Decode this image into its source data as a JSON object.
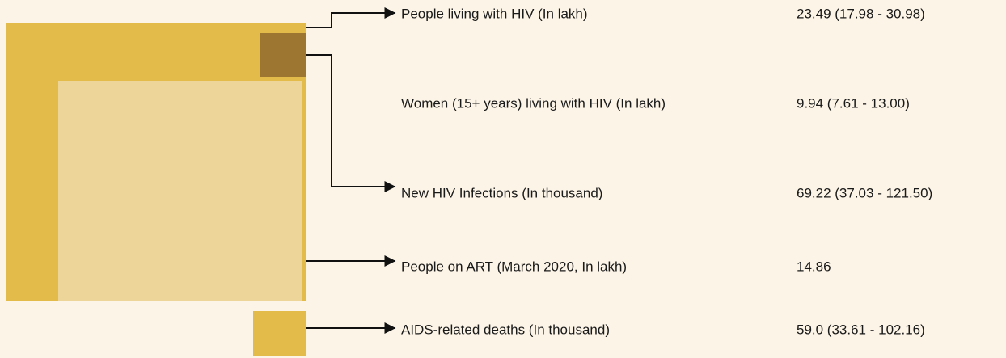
{
  "items": [
    {
      "label": "People living with HIV (In lakh)",
      "value": "23.49 (17.98 - 30.98)"
    },
    {
      "label": "Women (15+ years) living with HIV (In lakh)",
      "value": "9.94 (7.61 - 13.00)"
    },
    {
      "label": "New HIV Infections (In thousand)",
      "value": "69.22 (37.03 - 121.50)"
    },
    {
      "label": "People on ART (March 2020, In lakh)",
      "value": "14.86"
    },
    {
      "label": "AIDS-related deaths (In thousand)",
      "value": "59.0 (33.61 - 102.16)"
    }
  ]
}
